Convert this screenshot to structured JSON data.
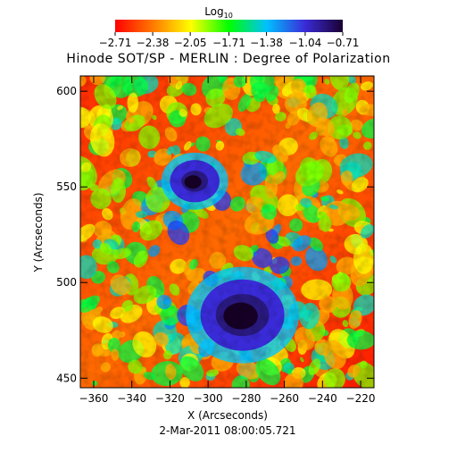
{
  "colorbar": {
    "label_main": "Log",
    "label_sub": "10",
    "ticks": [
      -2.71,
      -2.38,
      -2.05,
      -1.71,
      -1.38,
      -1.04,
      -0.71
    ],
    "colors": [
      "#ff0000",
      "#ff7a00",
      "#ffff00",
      "#00ff00",
      "#00c0ff",
      "#3a2bd8",
      "#1a0030"
    ]
  },
  "chart_data": {
    "type": "heatmap",
    "title": "Hinode SOT/SP - MERLIN : Degree of Polarization",
    "xlabel": "X (Arcseconds)",
    "ylabel": "Y (Arcseconds)",
    "xlim": [
      -367,
      -213
    ],
    "ylim": [
      445,
      608
    ],
    "x_ticks": [
      -360,
      -340,
      -320,
      -300,
      -280,
      -260,
      -240,
      -220
    ],
    "y_ticks": [
      450,
      500,
      550,
      600
    ],
    "colorbar_range": [
      -2.71,
      -0.71
    ],
    "features": [
      {
        "name": "large-sunspot",
        "center": [
          -282,
          483
        ],
        "umbra_radius": 10,
        "penumbra_radius": 22
      },
      {
        "name": "small-sunspot",
        "center": [
          -307,
          553
        ],
        "umbra_radius": 5,
        "penumbra_radius": 13
      }
    ]
  },
  "footer": {
    "timestamp": "2-Mar-2011 08:00:05.721"
  }
}
